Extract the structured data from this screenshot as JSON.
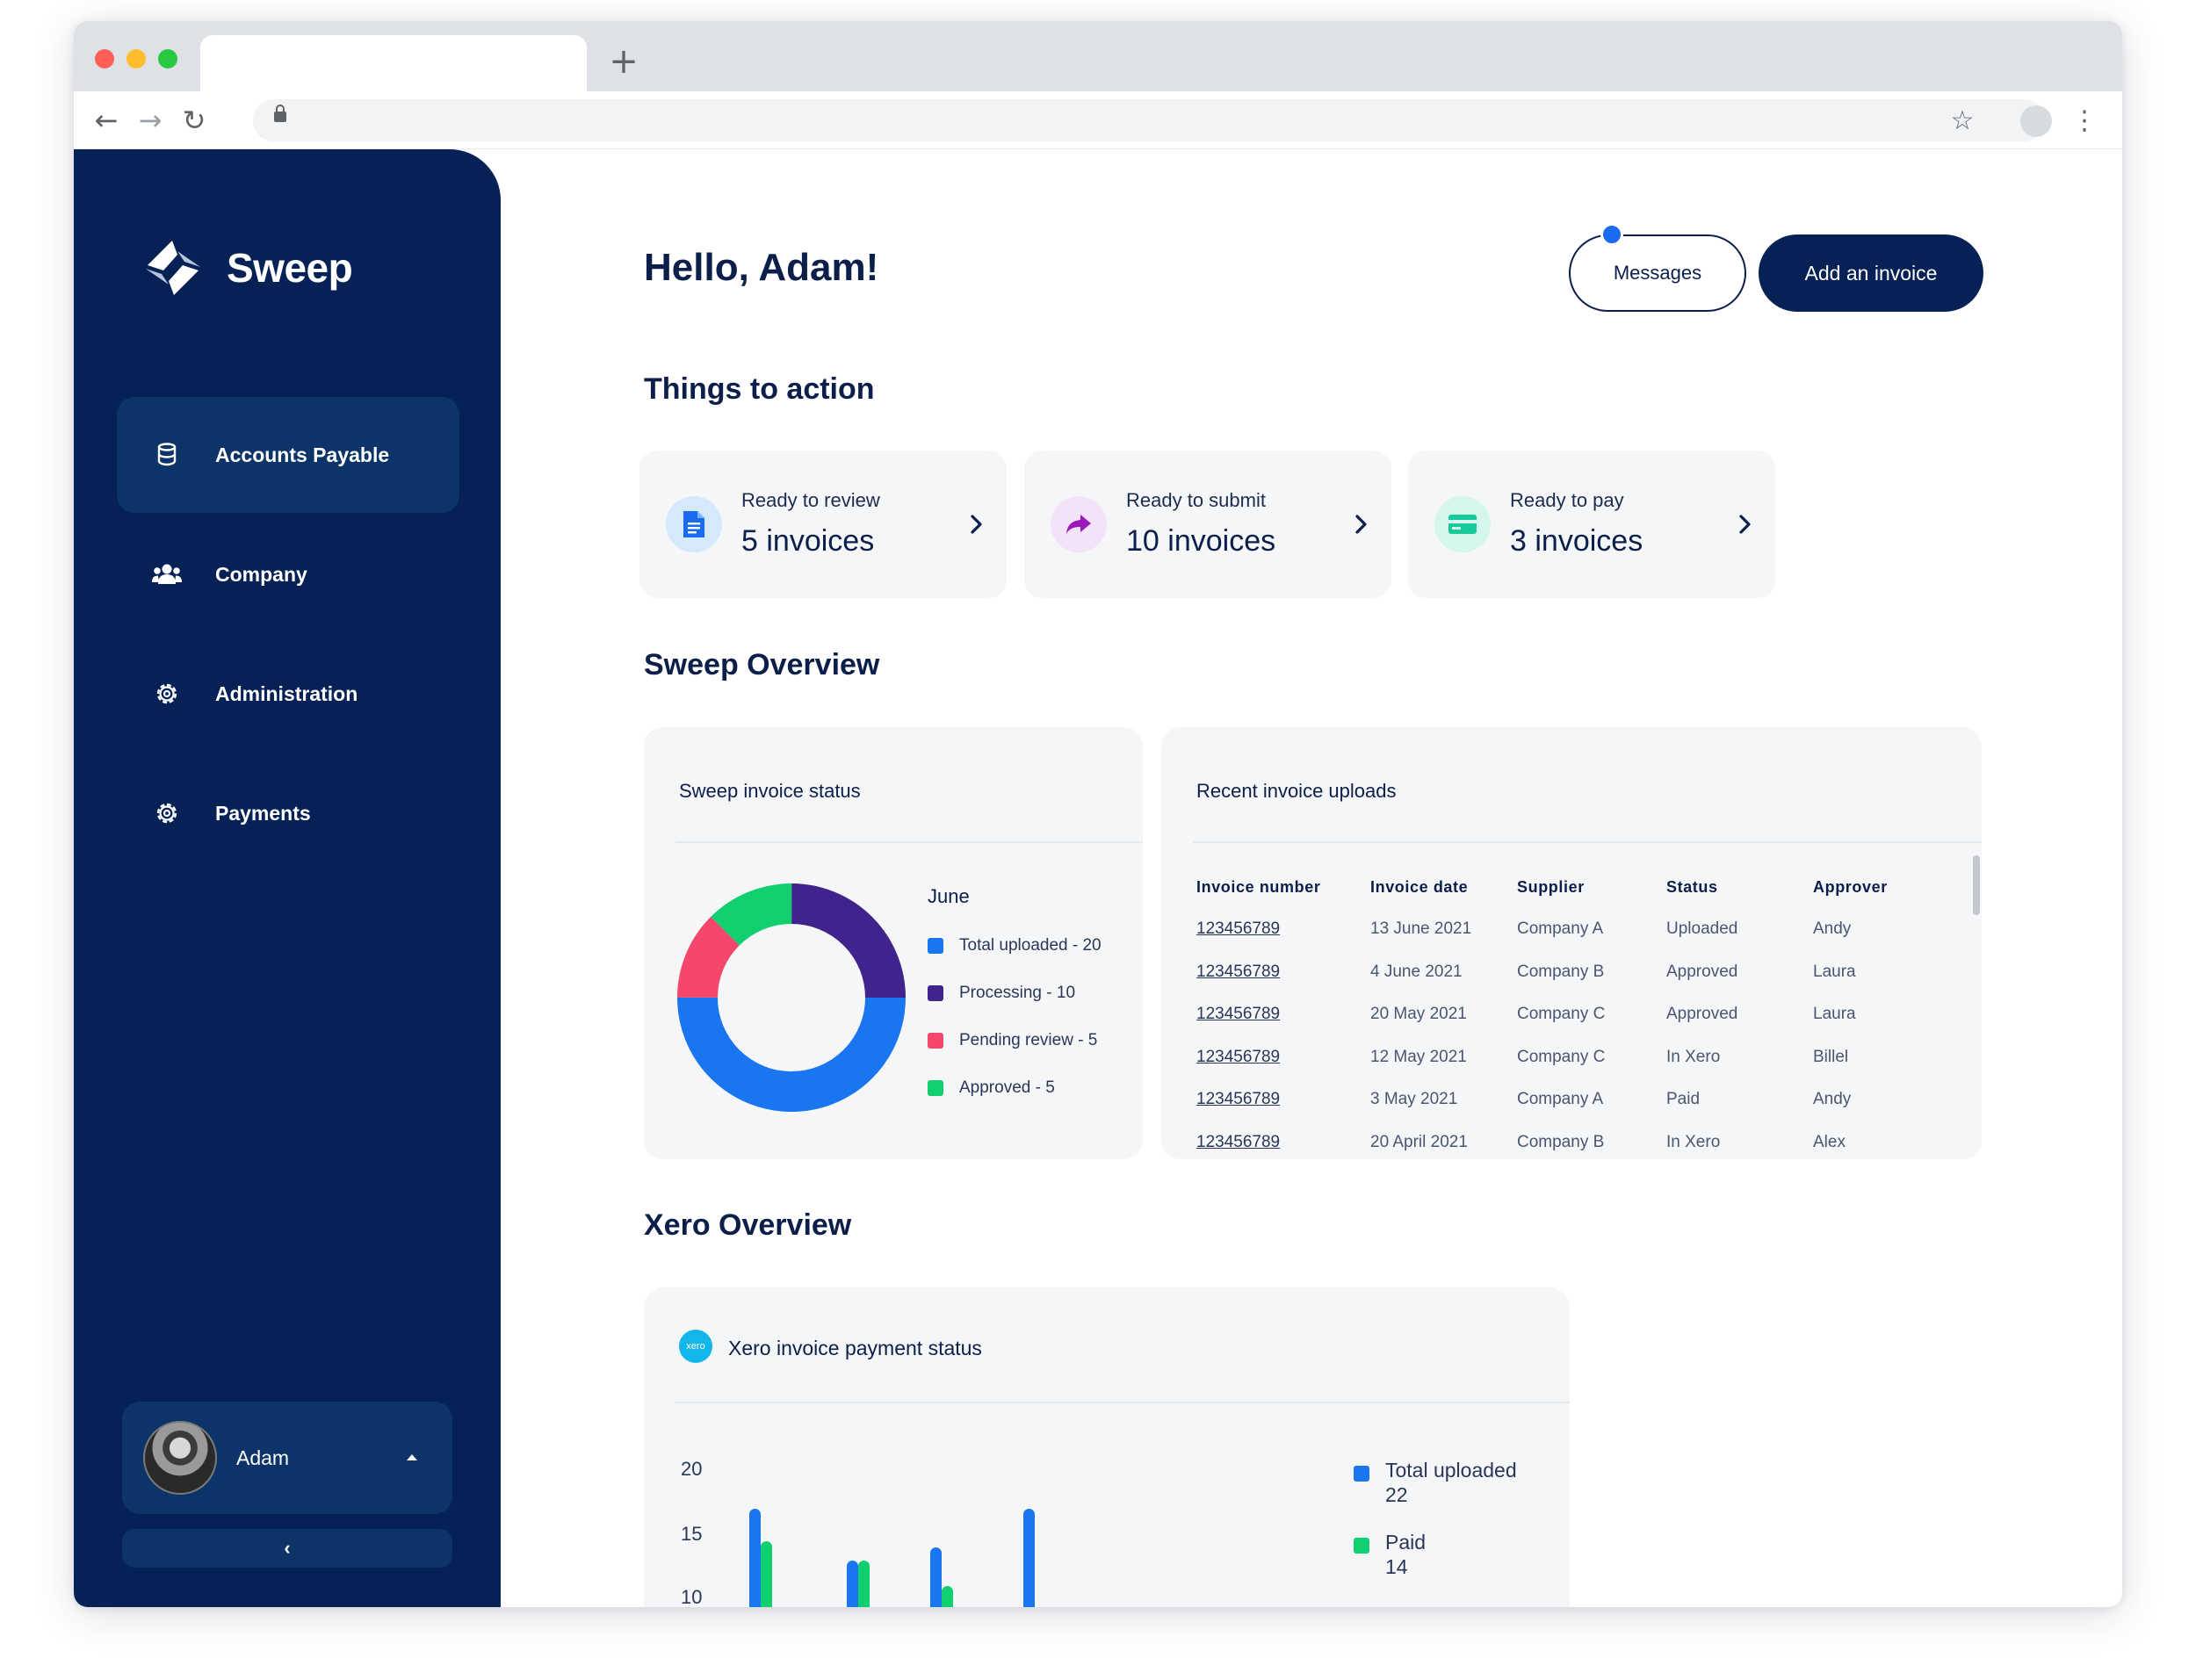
{
  "browser": {
    "new_tab": "+"
  },
  "sidebar": {
    "brand": "Sweep",
    "items": [
      {
        "label": "Accounts Payable",
        "icon": "database-icon",
        "active": true
      },
      {
        "label": "Company",
        "icon": "users-icon",
        "active": false
      },
      {
        "label": "Administration",
        "icon": "gear-icon",
        "active": false
      },
      {
        "label": "Payments",
        "icon": "gear-icon",
        "active": false
      }
    ],
    "user": {
      "name": "Adam"
    },
    "collapse_label": "‹"
  },
  "header": {
    "greeting": "Hello, Adam!",
    "messages_label": "Messages",
    "add_invoice_label": "Add an invoice"
  },
  "things_to_action": {
    "title": "Things to action",
    "cards": [
      {
        "label": "Ready to review",
        "value": "5 invoices",
        "icon": "document-icon",
        "icon_bg": "#d6e8fb",
        "icon_color": "#1a6bf0"
      },
      {
        "label": "Ready to submit",
        "value": "10 invoices",
        "icon": "share-arrow-icon",
        "icon_bg": "#f3e2f8",
        "icon_color": "#9b19b8"
      },
      {
        "label": "Ready to pay",
        "value": "3 invoices",
        "icon": "credit-card-icon",
        "icon_bg": "#d4f6ec",
        "icon_color": "#18c99a"
      }
    ]
  },
  "sweep_overview": {
    "title": "Sweep Overview",
    "status_panel": {
      "title": "Sweep invoice status",
      "legend_title": "June",
      "legend": [
        {
          "label": "Total uploaded - 20",
          "color": "#1a75f0"
        },
        {
          "label": "Processing - 10",
          "color": "#40238c"
        },
        {
          "label": "Pending review - 5",
          "color": "#f5476c"
        },
        {
          "label": "Approved - 5",
          "color": "#0fcf6e"
        }
      ]
    },
    "uploads_panel": {
      "title": "Recent invoice uploads",
      "columns": [
        "Invoice number",
        "Invoice date",
        "Supplier",
        "Status",
        "Approver"
      ],
      "rows": [
        [
          "123456789",
          "13 June 2021",
          "Company A",
          "Uploaded",
          "Andy"
        ],
        [
          "123456789",
          "4 June 2021",
          "Company B",
          "Approved",
          "Laura"
        ],
        [
          "123456789",
          "20 May 2021",
          "Company C",
          "Approved",
          "Laura"
        ],
        [
          "123456789",
          "12 May 2021",
          "Company C",
          "In Xero",
          "Billel"
        ],
        [
          "123456789",
          "3 May 2021",
          "Company A",
          "Paid",
          "Andy"
        ],
        [
          "123456789",
          "20 April 2021",
          "Company B",
          "In Xero",
          "Alex"
        ]
      ]
    }
  },
  "xero_overview": {
    "title": "Xero Overview",
    "panel_title": "Xero invoice payment status",
    "badge_text": "xero",
    "legend": [
      {
        "label": "Total uploaded",
        "value": "22",
        "color": "#1a75f0"
      },
      {
        "label": "Paid",
        "value": "14",
        "color": "#0fcf6e"
      }
    ]
  },
  "chart_data": [
    {
      "type": "pie",
      "title": "Sweep invoice status",
      "subtitle": "June",
      "categories": [
        "Total uploaded",
        "Processing",
        "Pending review",
        "Approved"
      ],
      "values": [
        20,
        10,
        5,
        5
      ],
      "colors": [
        "#1a75f0",
        "#40238c",
        "#f5476c",
        "#0fcf6e"
      ],
      "legend": "right"
    },
    {
      "type": "bar",
      "title": "Xero invoice payment status",
      "yticks": [
        20,
        15,
        10
      ],
      "ylim": [
        0,
        20
      ],
      "grid": false,
      "legend": "right",
      "series": [
        {
          "name": "Total uploaded",
          "color": "#1a75f0",
          "values": [
            17,
            13,
            14,
            17
          ]
        },
        {
          "name": "Paid",
          "color": "#0fcf6e",
          "values": [
            14.5,
            13,
            11,
            0
          ]
        }
      ]
    }
  ]
}
